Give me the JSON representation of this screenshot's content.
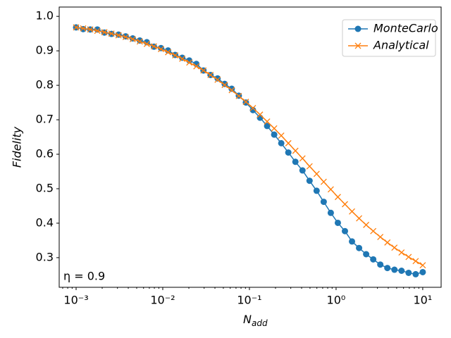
{
  "chart_data": {
    "type": "line",
    "ylabel": "Fidelity",
    "xlabel": "N",
    "xlabel_sub": "add",
    "annotation": "η = 0.9",
    "log_x": true,
    "legend": "upper right",
    "axis_label_color": "#1f77b4",
    "x": [
      0.001,
      0.0012068,
      0.0014563,
      0.0017575,
      0.002121,
      0.0025595,
      0.0030888,
      0.0037276,
      0.0044984,
      0.0054287,
      0.0065513,
      0.007906,
      0.009541,
      0.011514,
      0.013895,
      0.016768,
      0.020236,
      0.024421,
      0.029471,
      0.035565,
      0.042919,
      0.051795,
      0.062506,
      0.075431,
      0.09103,
      0.10985,
      0.13257,
      0.15999,
      0.19307,
      0.233,
      0.28118,
      0.33932,
      0.40949,
      0.49417,
      0.59636,
      0.71969,
      0.86851,
      1.0481,
      1.2649,
      1.5264,
      1.8421,
      2.223,
      2.6827,
      3.2375,
      3.9069,
      4.7149,
      5.6899,
      6.8665,
      8.2864,
      10
    ],
    "series": [
      {
        "name": "MonteCarlo",
        "color": "#1f77b4",
        "marker": "o",
        "values": [
          0.968,
          0.963,
          0.962,
          0.962,
          0.953,
          0.949,
          0.947,
          0.942,
          0.936,
          0.93,
          0.925,
          0.912,
          0.908,
          0.901,
          0.888,
          0.88,
          0.872,
          0.862,
          0.843,
          0.83,
          0.82,
          0.804,
          0.79,
          0.77,
          0.75,
          0.728,
          0.706,
          0.682,
          0.657,
          0.632,
          0.605,
          0.578,
          0.553,
          0.523,
          0.494,
          0.462,
          0.43,
          0.401,
          0.377,
          0.347,
          0.328,
          0.31,
          0.295,
          0.28,
          0.27,
          0.265,
          0.262,
          0.256,
          0.252,
          0.258
        ]
      },
      {
        "name": "Analytical",
        "color": "#ff7f0e",
        "marker": "x",
        "values": [
          0.968,
          0.965,
          0.962,
          0.958,
          0.954,
          0.95,
          0.945,
          0.94,
          0.934,
          0.927,
          0.92,
          0.913,
          0.905,
          0.896,
          0.887,
          0.877,
          0.866,
          0.855,
          0.843,
          0.83,
          0.816,
          0.801,
          0.786,
          0.769,
          0.752,
          0.734,
          0.715,
          0.695,
          0.675,
          0.654,
          0.632,
          0.61,
          0.588,
          0.565,
          0.543,
          0.52,
          0.498,
          0.476,
          0.455,
          0.434,
          0.414,
          0.395,
          0.377,
          0.36,
          0.344,
          0.329,
          0.315,
          0.302,
          0.29,
          0.278
        ]
      }
    ],
    "xlim": [
      0.000638,
      16.3
    ],
    "xticks": [
      {
        "value": 0.001,
        "label": "10⁻³"
      },
      {
        "value": 0.01,
        "label": "10⁻²"
      },
      {
        "value": 0.1,
        "label": "10⁻¹"
      },
      {
        "value": 1,
        "label": "10⁰"
      },
      {
        "value": 10,
        "label": "10¹"
      }
    ],
    "ylim": [
      0.214,
      1.027
    ],
    "yticks": [
      0.3,
      0.4,
      0.5,
      0.6,
      0.7,
      0.8,
      0.9,
      {
        "value": 1.0,
        "label": "1.0"
      }
    ]
  }
}
